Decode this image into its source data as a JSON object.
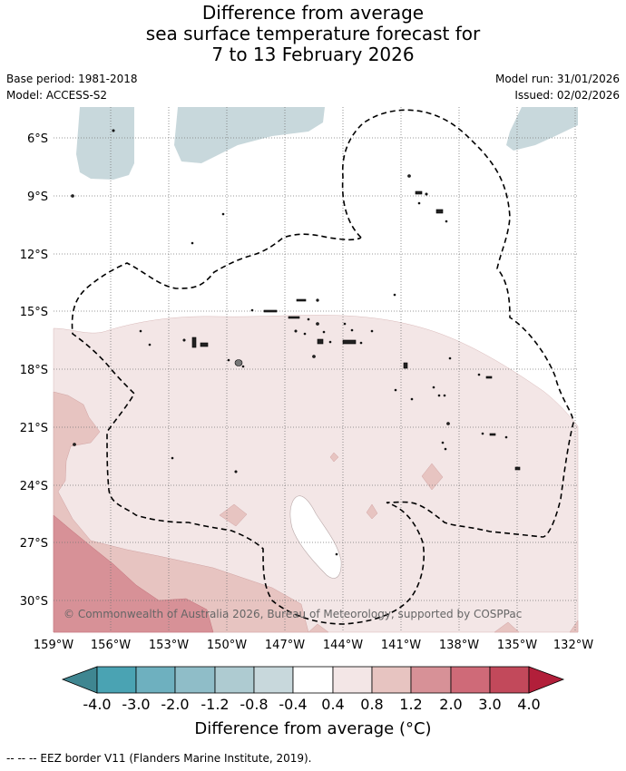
{
  "title": {
    "line1": "Difference from average",
    "line2": "sea surface temperature forecast for",
    "line3": "7 to 13 February 2026"
  },
  "meta": {
    "base_period": "Base period: 1981-2018",
    "model": "Model: ACCESS-S2",
    "model_run": "Model run: 31/01/2026",
    "issued": "Issued: 02/02/2026"
  },
  "map": {
    "lon_labels": [
      "159°W",
      "156°W",
      "153°W",
      "150°W",
      "147°W",
      "144°W",
      "141°W",
      "138°W",
      "135°W",
      "132°W"
    ],
    "lat_labels": [
      "6°S",
      "9°S",
      "12°S",
      "15°S",
      "18°S",
      "21°S",
      "24°S",
      "27°S",
      "30°S"
    ],
    "copyright": "© Commonwealth of Australia 2026, Bureau of Meteorology, supported by COSPPac"
  },
  "colorbar": {
    "ticks": [
      "-4.0",
      "-3.0",
      "-2.0",
      "-1.2",
      "-0.8",
      "-0.4",
      "0.4",
      "0.8",
      "1.2",
      "2.0",
      "3.0",
      "4.0"
    ],
    "colors": [
      "#3f8691",
      "#4aa3b3",
      "#6eb0bf",
      "#8fbdc8",
      "#aecbd1",
      "#c8d8dc",
      "#ffffff",
      "#f3e6e6",
      "#e7c4c1",
      "#d79197",
      "#cf6a78",
      "#c2495b",
      "#b21f3a"
    ],
    "label": "Difference from average (°C)"
  },
  "legend": {
    "eez": "--  --  -- EEZ border V11 (Flanders Marine Institute, 2019)."
  }
}
